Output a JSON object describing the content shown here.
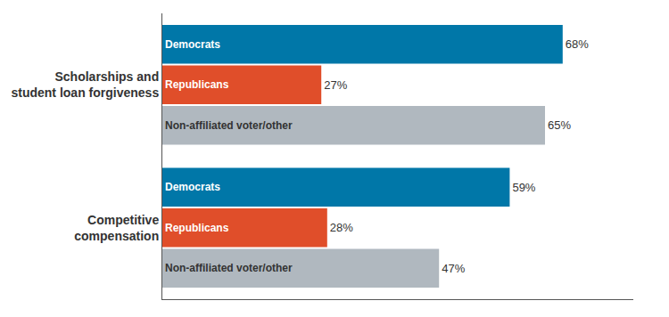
{
  "chart_data": {
    "type": "bar",
    "orientation": "horizontal",
    "categories": [
      "Scholarships and\nstudent loan forgiveness",
      "Competitive\ncompensation"
    ],
    "series": [
      {
        "name": "Democrats",
        "color": "#0077a8",
        "values": [
          68,
          59
        ],
        "value_labels": [
          "68%",
          "59%"
        ]
      },
      {
        "name": "Republicans",
        "color": "#e04e2a",
        "values": [
          27,
          28
        ],
        "value_labels": [
          "27%",
          "28%"
        ]
      },
      {
        "name": "Non-affiliated voter/other",
        "color": "#b0b8bf",
        "values": [
          65,
          47
        ],
        "value_labels": [
          "65%",
          "47%"
        ]
      }
    ],
    "xlim": [
      0,
      80
    ],
    "data_labels": true,
    "tick_labels": "y",
    "grid": false
  }
}
